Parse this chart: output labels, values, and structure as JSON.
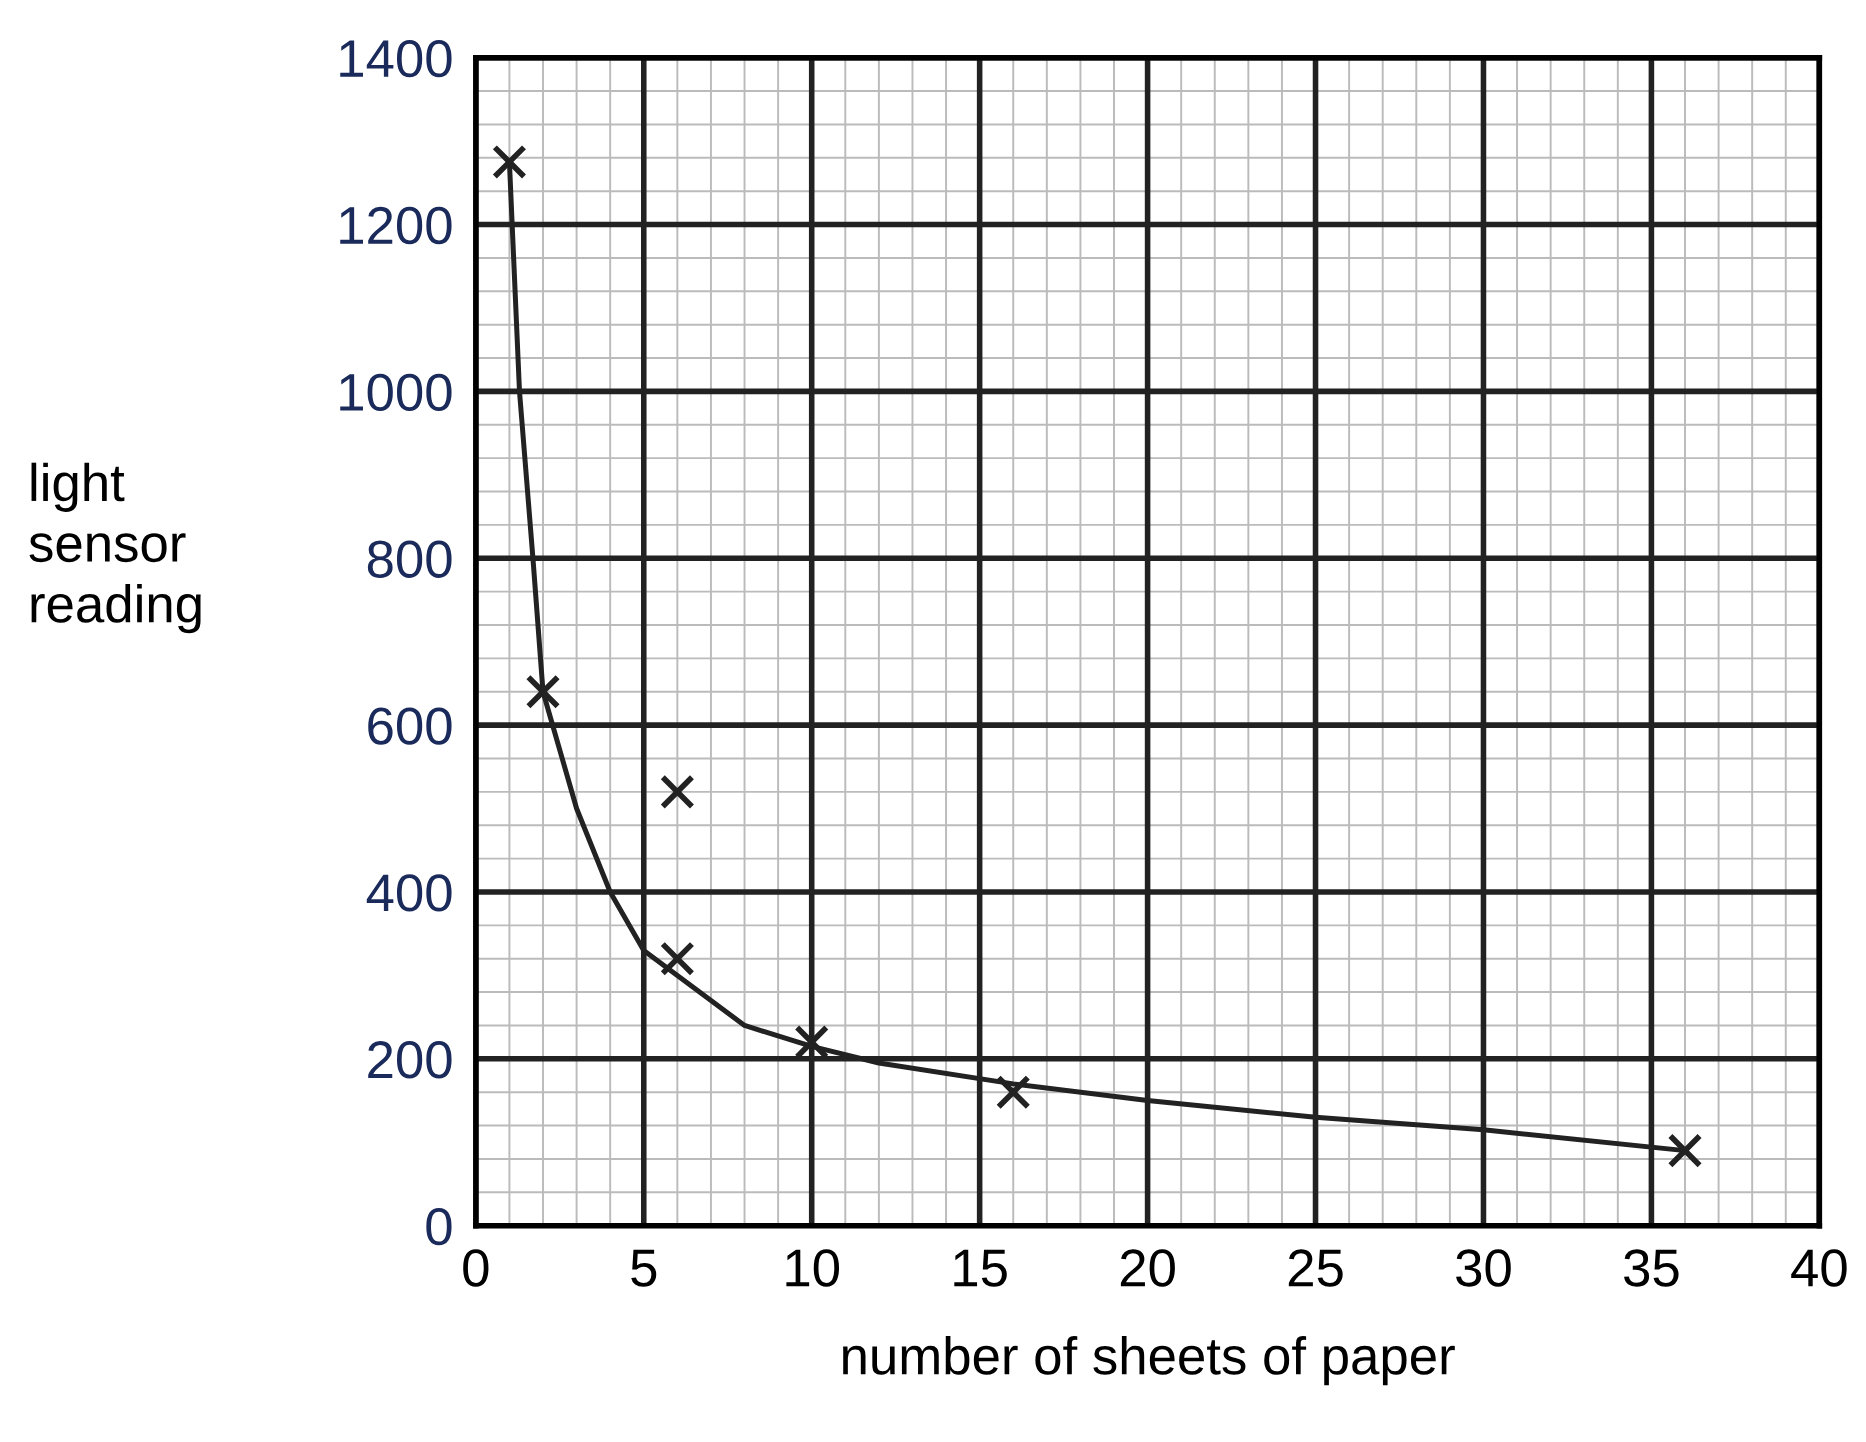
{
  "chart_data": {
    "type": "scatter",
    "xlabel": "number of sheets of paper",
    "ylabel": "light\nsensor\nreading",
    "x": [
      1,
      2,
      6,
      6,
      10,
      16,
      36
    ],
    "xlim": [
      0,
      40
    ],
    "ylim": [
      0,
      1400
    ],
    "xticks": [
      0,
      5,
      10,
      15,
      20,
      25,
      30,
      35,
      40
    ],
    "yticks": [
      0,
      200,
      400,
      600,
      800,
      1000,
      1200,
      1400
    ],
    "grid": true,
    "marker": "cross",
    "series": [
      {
        "color": "#222222",
        "values": [
          1275,
          640,
          520,
          320,
          220,
          160,
          90
        ]
      },
      {
        "type": "line",
        "color": "#222222",
        "marker": "none",
        "x": [
          1,
          1.3,
          1.7,
          2,
          3,
          4,
          5,
          6,
          8,
          10,
          12,
          16,
          20,
          25,
          30,
          36
        ],
        "values": [
          1275,
          1000,
          800,
          640,
          500,
          400,
          330,
          300,
          240,
          215,
          195,
          170,
          150,
          130,
          115,
          90
        ]
      }
    ]
  }
}
